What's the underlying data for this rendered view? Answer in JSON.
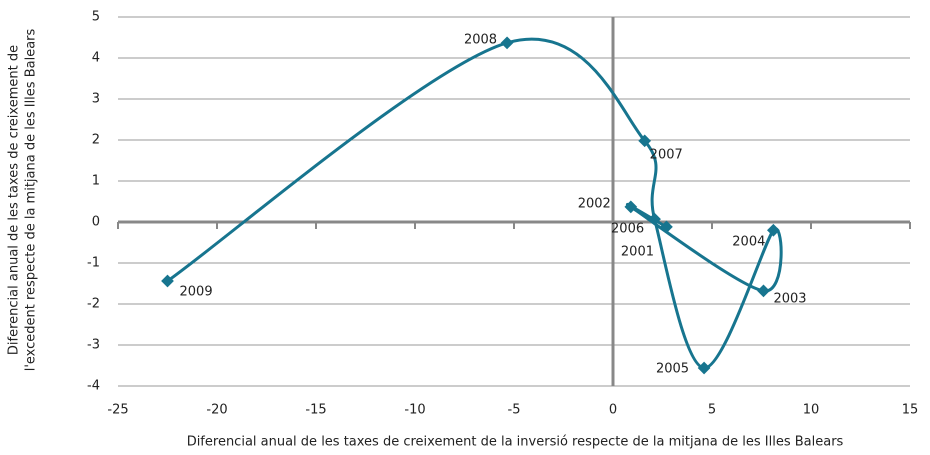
{
  "chart_data": {
    "type": "scatter",
    "x": [
      2.7,
      0.9,
      7.6,
      8.1,
      4.6,
      2.1,
      1.6,
      -5.35,
      -22.5
    ],
    "values": [
      -0.12,
      0.37,
      -1.68,
      -0.2,
      -3.56,
      0.07,
      1.98,
      4.37,
      -1.44
    ],
    "point_labels": [
      "2001",
      "2002",
      "2003",
      "2004",
      "2005",
      "2006",
      "2007",
      "2008",
      "2009"
    ],
    "color": "#17758f",
    "xlim": [
      -25,
      15
    ],
    "xticks": [
      -25,
      -20,
      -15,
      -10,
      -5,
      0,
      5,
      10,
      15
    ],
    "ylim": [
      -4,
      5
    ],
    "yticks": [
      -4,
      -3,
      -2,
      -1,
      0,
      1,
      2,
      3,
      4,
      5
    ],
    "grid": true,
    "xlabel": "Diferencial anual de les taxes de creixement de la inversió respecte de la mitjana de les Illes Balears",
    "ylabel": [
      "Diferencial anual de les taxes de creixement de",
      "l'excedent respecte de la mitjana de les Illes Balears"
    ]
  }
}
